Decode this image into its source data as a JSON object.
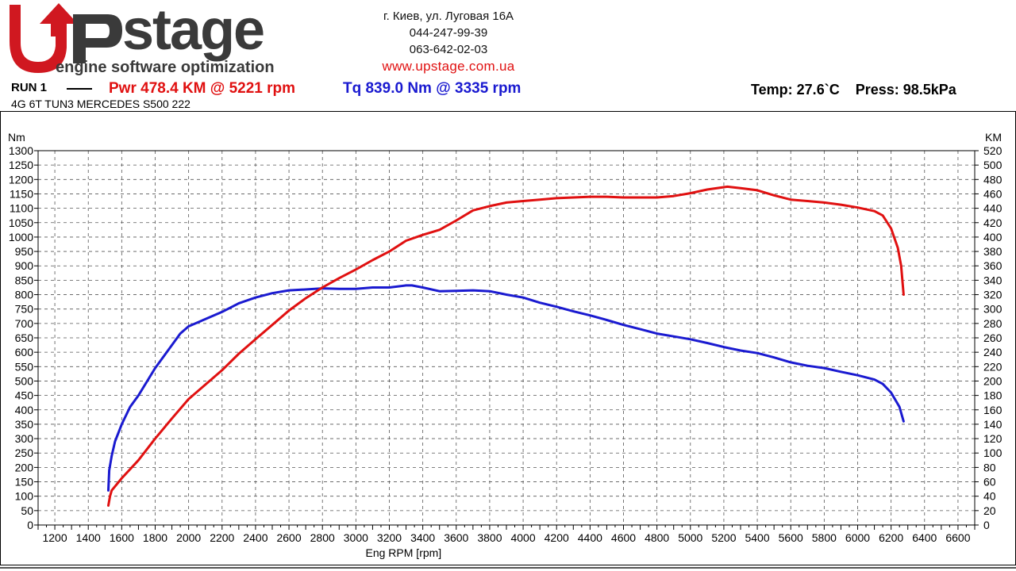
{
  "header": {
    "logo": {
      "wordmark": "Upstage",
      "tagline": "engine software optimization"
    },
    "address": "г. Киев, ул. Луговая 16А",
    "phone1": "044-247-99-39",
    "phone2": "063-642-02-03",
    "website": "www.upstage.com.ua"
  },
  "run": {
    "label": "RUN 1",
    "power_summary": "Pwr  478.4 KM @ 5221 rpm",
    "torque_summary": "Tq 839.0 Nm @ 3335 rpm",
    "temperature": "Temp: 27.6`C",
    "pressure": "Press: 98.5kPa",
    "vehicle": "4G 6T TUN3 MERCEDES S500 222"
  },
  "colors": {
    "power": "#e01010",
    "torque": "#1a1ad0",
    "accent": "#e01010"
  },
  "chart_data": {
    "type": "line",
    "xlabel": "Eng RPM [rpm]",
    "ylabel_left": "Nm",
    "ylabel_right": "KM",
    "xlim": [
      1100,
      6700
    ],
    "ylim_left": [
      0,
      1300
    ],
    "ylim_right": [
      0,
      520
    ],
    "x_ticks": [
      1200,
      1400,
      1600,
      1800,
      2000,
      2200,
      2400,
      2600,
      2800,
      3000,
      3200,
      3400,
      3600,
      3800,
      4000,
      4200,
      4400,
      4600,
      4800,
      5000,
      5200,
      5400,
      5600,
      5800,
      6000,
      6200,
      6400,
      6600
    ],
    "y_ticks_left": [
      0,
      50,
      100,
      150,
      200,
      250,
      300,
      350,
      400,
      450,
      500,
      550,
      600,
      650,
      700,
      750,
      800,
      850,
      900,
      950,
      1000,
      1050,
      1100,
      1150,
      1200,
      1250,
      1300
    ],
    "y_ticks_right": [
      0,
      20,
      40,
      60,
      80,
      100,
      120,
      140,
      160,
      180,
      200,
      220,
      240,
      260,
      280,
      300,
      320,
      340,
      360,
      380,
      400,
      420,
      440,
      460,
      480,
      500,
      520
    ],
    "grid": true,
    "series": [
      {
        "name": "Tq",
        "axis": "left",
        "color": "#1a1ad0",
        "points": [
          [
            1520,
            120
          ],
          [
            1525,
            190
          ],
          [
            1540,
            240
          ],
          [
            1560,
            290
          ],
          [
            1600,
            350
          ],
          [
            1650,
            410
          ],
          [
            1700,
            450
          ],
          [
            1800,
            545
          ],
          [
            1900,
            625
          ],
          [
            1950,
            665
          ],
          [
            2000,
            690
          ],
          [
            2100,
            715
          ],
          [
            2200,
            740
          ],
          [
            2300,
            770
          ],
          [
            2400,
            790
          ],
          [
            2500,
            805
          ],
          [
            2600,
            815
          ],
          [
            2700,
            818
          ],
          [
            2800,
            822
          ],
          [
            2900,
            820
          ],
          [
            3000,
            820
          ],
          [
            3100,
            825
          ],
          [
            3200,
            825
          ],
          [
            3300,
            832
          ],
          [
            3335,
            832
          ],
          [
            3400,
            825
          ],
          [
            3500,
            812
          ],
          [
            3600,
            813
          ],
          [
            3700,
            815
          ],
          [
            3800,
            812
          ],
          [
            3900,
            800
          ],
          [
            4000,
            790
          ],
          [
            4100,
            772
          ],
          [
            4200,
            758
          ],
          [
            4300,
            742
          ],
          [
            4400,
            728
          ],
          [
            4500,
            712
          ],
          [
            4600,
            695
          ],
          [
            4700,
            680
          ],
          [
            4800,
            665
          ],
          [
            4900,
            655
          ],
          [
            5000,
            645
          ],
          [
            5100,
            632
          ],
          [
            5200,
            618
          ],
          [
            5300,
            606
          ],
          [
            5400,
            597
          ],
          [
            5500,
            582
          ],
          [
            5600,
            565
          ],
          [
            5700,
            553
          ],
          [
            5800,
            545
          ],
          [
            5900,
            532
          ],
          [
            6000,
            520
          ],
          [
            6100,
            505
          ],
          [
            6150,
            490
          ],
          [
            6200,
            460
          ],
          [
            6250,
            410
          ],
          [
            6275,
            360
          ]
        ]
      },
      {
        "name": "Pwr",
        "axis": "right",
        "color": "#e01010",
        "points": [
          [
            1520,
            27
          ],
          [
            1530,
            40
          ],
          [
            1540,
            48
          ],
          [
            1600,
            65
          ],
          [
            1700,
            90
          ],
          [
            1800,
            120
          ],
          [
            1900,
            148
          ],
          [
            2000,
            175
          ],
          [
            2100,
            195
          ],
          [
            2200,
            215
          ],
          [
            2300,
            238
          ],
          [
            2400,
            258
          ],
          [
            2500,
            278
          ],
          [
            2600,
            298
          ],
          [
            2700,
            315
          ],
          [
            2800,
            330
          ],
          [
            2900,
            343
          ],
          [
            3000,
            355
          ],
          [
            3100,
            368
          ],
          [
            3200,
            380
          ],
          [
            3300,
            395
          ],
          [
            3400,
            403
          ],
          [
            3500,
            410
          ],
          [
            3600,
            423
          ],
          [
            3700,
            437
          ],
          [
            3800,
            443
          ],
          [
            3900,
            448
          ],
          [
            4000,
            450
          ],
          [
            4100,
            452
          ],
          [
            4200,
            454
          ],
          [
            4300,
            455
          ],
          [
            4400,
            456
          ],
          [
            4500,
            456
          ],
          [
            4600,
            455
          ],
          [
            4700,
            455
          ],
          [
            4800,
            455
          ],
          [
            4900,
            457
          ],
          [
            5000,
            461
          ],
          [
            5100,
            466
          ],
          [
            5221,
            470
          ],
          [
            5300,
            468
          ],
          [
            5400,
            465
          ],
          [
            5500,
            458
          ],
          [
            5600,
            452
          ],
          [
            5700,
            450
          ],
          [
            5800,
            448
          ],
          [
            5900,
            445
          ],
          [
            6000,
            441
          ],
          [
            6100,
            436
          ],
          [
            6150,
            430
          ],
          [
            6200,
            412
          ],
          [
            6240,
            385
          ],
          [
            6260,
            360
          ],
          [
            6275,
            320
          ]
        ]
      }
    ]
  }
}
